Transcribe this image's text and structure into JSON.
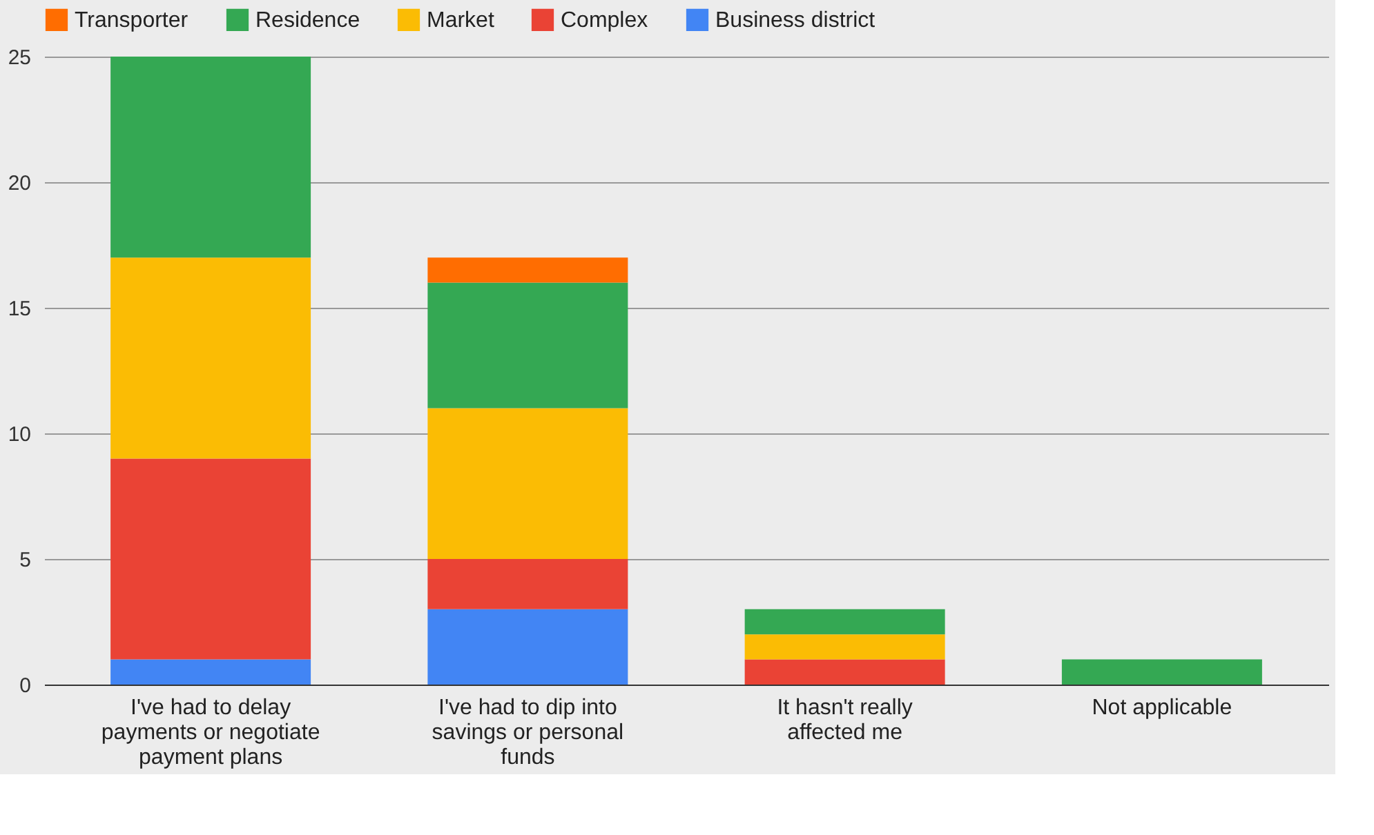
{
  "chart_data": {
    "type": "bar",
    "stacked": true,
    "categories": [
      "I've had to delay payments or negotiate payment plans",
      "I've had to dip into savings or personal funds",
      "It hasn't really affected me",
      "Not applicable"
    ],
    "series": [
      {
        "name": "Business district",
        "color": "#4285f4",
        "values": [
          1,
          3,
          0,
          0
        ]
      },
      {
        "name": "Complex",
        "color": "#ea4335",
        "values": [
          8,
          2,
          1,
          0
        ]
      },
      {
        "name": "Market",
        "color": "#fbbc04",
        "values": [
          8,
          6,
          1,
          0
        ]
      },
      {
        "name": "Residence",
        "color": "#34a853",
        "values": [
          8,
          5,
          1,
          1
        ]
      },
      {
        "name": "Transporter",
        "color": "#ff6d01",
        "values": [
          0,
          1,
          0,
          0
        ]
      }
    ],
    "ylim": [
      0,
      25
    ],
    "yticks": [
      0,
      5,
      10,
      15,
      20,
      25
    ],
    "grid": "y",
    "legend": "top"
  }
}
